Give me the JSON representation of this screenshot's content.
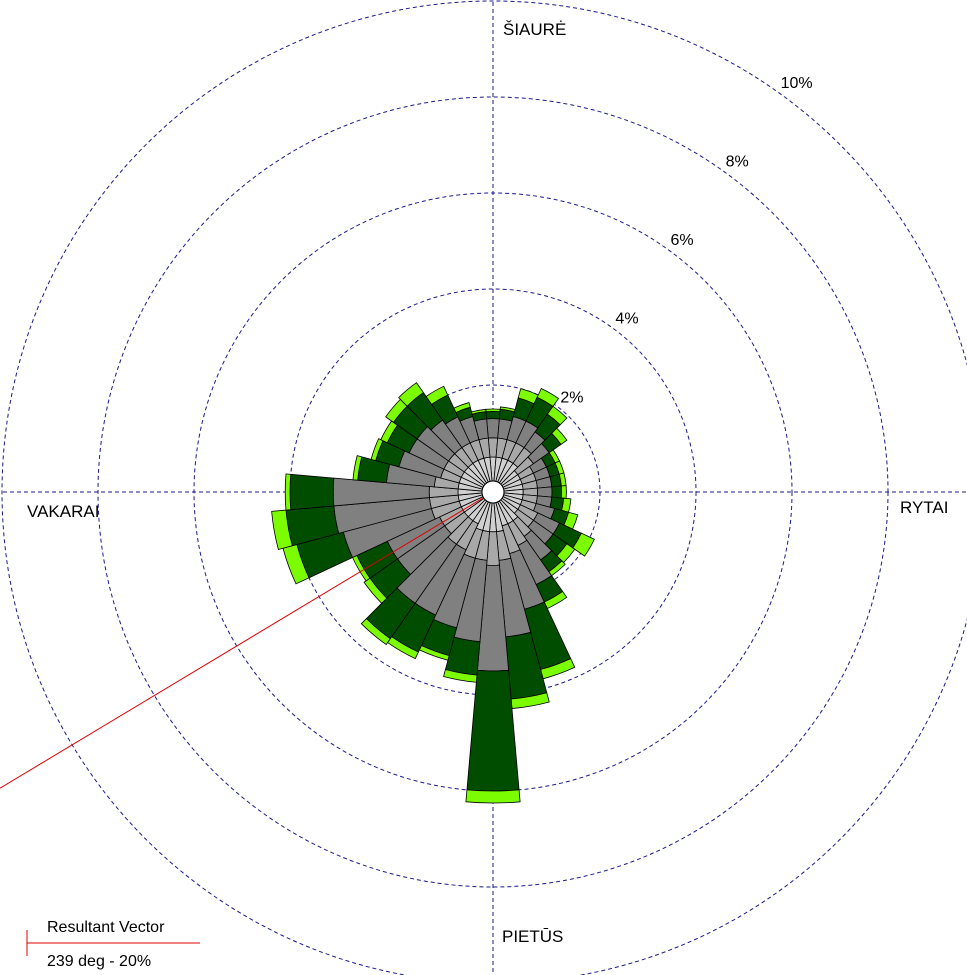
{
  "chart_data": {
    "type": "wind-rose",
    "directions": {
      "north": "ŠIAURĖ",
      "east": "RYTAI",
      "south": "PIETŪS",
      "west": "VAKARAI"
    },
    "ring_labels": [
      "2%",
      "4%",
      "6%",
      "8%",
      "10%"
    ],
    "ring_values": [
      2,
      4,
      6,
      8,
      10
    ],
    "max_value": 10,
    "sector_width_deg": 10,
    "bins": [
      {
        "color": "#d0d0d0"
      },
      {
        "color": "#a8a8a8"
      },
      {
        "color": "#808080"
      },
      {
        "color": "#004d00"
      },
      {
        "color": "#7cfc00"
      }
    ],
    "sectors": [
      {
        "dir": 0,
        "values": [
          0.5,
          0.4,
          0.4,
          0.15,
          0.05
        ]
      },
      {
        "dir": 10,
        "values": [
          0.5,
          0.4,
          0.4,
          0.2,
          0.05
        ]
      },
      {
        "dir": 20,
        "values": [
          0.5,
          0.4,
          0.5,
          0.4,
          0.2
        ]
      },
      {
        "dir": 30,
        "values": [
          0.5,
          0.4,
          0.5,
          0.55,
          0.2
        ]
      },
      {
        "dir": 40,
        "values": [
          0.5,
          0.4,
          0.4,
          0.45,
          0.2
        ]
      },
      {
        "dir": 50,
        "values": [
          0.4,
          0.4,
          0.4,
          0.3,
          0.15
        ]
      },
      {
        "dir": 60,
        "values": [
          0.4,
          0.3,
          0.3,
          0.2,
          0.1
        ]
      },
      {
        "dir": 70,
        "values": [
          0.4,
          0.3,
          0.3,
          0.2,
          0.1
        ]
      },
      {
        "dir": 80,
        "values": [
          0.4,
          0.3,
          0.3,
          0.2,
          0.1
        ]
      },
      {
        "dir": 90,
        "values": [
          0.4,
          0.3,
          0.3,
          0.2,
          0.1
        ]
      },
      {
        "dir": 100,
        "values": [
          0.4,
          0.3,
          0.3,
          0.25,
          0.15
        ]
      },
      {
        "dir": 110,
        "values": [
          0.4,
          0.3,
          0.4,
          0.3,
          0.2
        ]
      },
      {
        "dir": 120,
        "values": [
          0.4,
          0.4,
          0.5,
          0.5,
          0.3
        ]
      },
      {
        "dir": 130,
        "values": [
          0.4,
          0.4,
          0.5,
          0.35,
          0.2
        ]
      },
      {
        "dir": 140,
        "values": [
          0.5,
          0.4,
          0.6,
          0.3,
          0.1
        ]
      },
      {
        "dir": 150,
        "values": [
          0.5,
          0.5,
          0.9,
          0.4,
          0.15
        ]
      },
      {
        "dir": 160,
        "values": [
          0.5,
          0.6,
          1.2,
          1.3,
          0.2
        ]
      },
      {
        "dir": 170,
        "values": [
          0.6,
          0.6,
          1.6,
          1.3,
          0.2
        ]
      },
      {
        "dir": 180,
        "values": [
          0.6,
          0.7,
          2.2,
          2.5,
          0.25
        ]
      },
      {
        "dir": 190,
        "values": [
          0.6,
          0.6,
          1.7,
          0.7,
          0.15
        ]
      },
      {
        "dir": 200,
        "values": [
          0.6,
          0.6,
          1.5,
          0.6,
          0.1
        ]
      },
      {
        "dir": 210,
        "values": [
          0.5,
          0.6,
          1.5,
          0.85,
          0.15
        ]
      },
      {
        "dir": 220,
        "values": [
          0.5,
          0.6,
          1.5,
          0.9,
          0.15
        ]
      },
      {
        "dir": 230,
        "values": [
          0.5,
          0.5,
          1.2,
          0.7,
          0.15
        ]
      },
      {
        "dir": 240,
        "values": [
          0.5,
          0.5,
          1.2,
          0.7,
          0.1
        ]
      },
      {
        "dir": 250,
        "values": [
          0.5,
          0.6,
          1.9,
          1.0,
          0.3
        ]
      },
      {
        "dir": 260,
        "values": [
          0.5,
          0.6,
          2.0,
          1.0,
          0.3
        ]
      },
      {
        "dir": 270,
        "values": [
          0.5,
          0.6,
          2.0,
          0.9,
          0.1
        ]
      },
      {
        "dir": 280,
        "values": [
          0.5,
          0.5,
          1.0,
          0.6,
          0.1
        ]
      },
      {
        "dir": 290,
        "values": [
          0.5,
          0.4,
          0.9,
          0.5,
          0.1
        ]
      },
      {
        "dir": 300,
        "values": [
          0.5,
          0.4,
          0.8,
          0.5,
          0.15
        ]
      },
      {
        "dir": 310,
        "values": [
          0.5,
          0.4,
          0.8,
          0.6,
          0.2
        ]
      },
      {
        "dir": 320,
        "values": [
          0.5,
          0.4,
          0.7,
          0.7,
          0.25
        ]
      },
      {
        "dir": 330,
        "values": [
          0.5,
          0.4,
          0.6,
          0.5,
          0.2
        ]
      },
      {
        "dir": 340,
        "values": [
          0.5,
          0.4,
          0.5,
          0.2,
          0.1
        ]
      },
      {
        "dir": 350,
        "values": [
          0.5,
          0.4,
          0.4,
          0.15,
          0.05
        ]
      }
    ],
    "resultant": {
      "direction_deg": 239,
      "percent": 20,
      "color": "#e00000",
      "legend_title": "Resultant Vector",
      "legend_value": "239 deg - 20%"
    }
  }
}
